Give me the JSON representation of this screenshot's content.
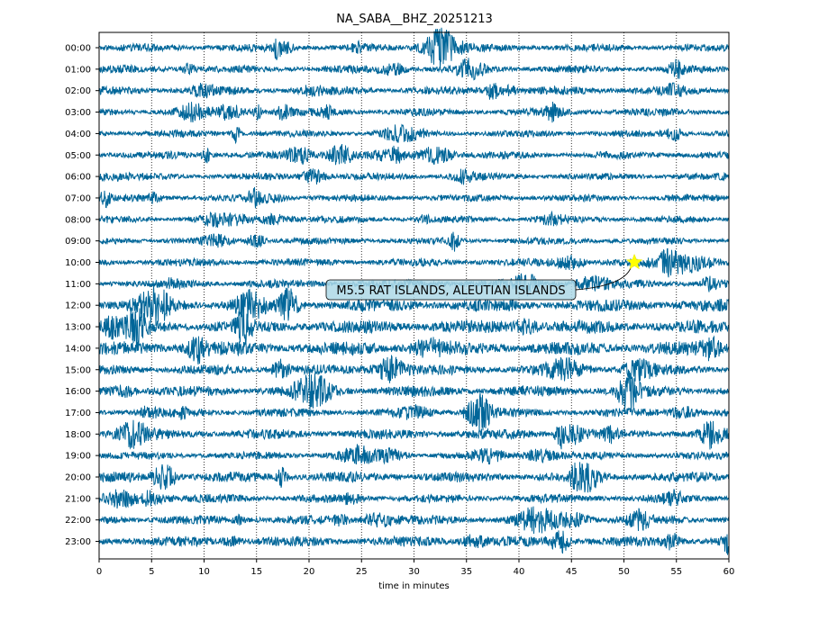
{
  "chart_data": {
    "type": "line",
    "title": "NA_SABA__BHZ_20251213",
    "xlabel": "time in minutes",
    "ylabel": "",
    "xlim": [
      0,
      60
    ],
    "x_ticks": [
      0,
      5,
      10,
      15,
      20,
      25,
      30,
      35,
      40,
      45,
      50,
      55,
      60
    ],
    "grid": "vertical dotted at each x tick",
    "trace_color": "#006699",
    "rows": [
      "00:00",
      "01:00",
      "02:00",
      "03:00",
      "04:00",
      "05:00",
      "06:00",
      "07:00",
      "08:00",
      "09:00",
      "10:00",
      "11:00",
      "12:00",
      "13:00",
      "14:00",
      "15:00",
      "16:00",
      "17:00",
      "18:00",
      "19:00",
      "20:00",
      "21:00",
      "22:00",
      "23:00"
    ],
    "row_amplitude": [
      1.0,
      1.0,
      1.1,
      1.0,
      0.9,
      1.0,
      0.9,
      0.9,
      0.9,
      0.9,
      1.0,
      1.1,
      1.6,
      1.7,
      1.8,
      1.3,
      1.4,
      1.1,
      1.3,
      1.0,
      1.3,
      1.1,
      1.2,
      1.3
    ],
    "event": {
      "label": "M5.5 RAT ISLANDS, ALEUTIAN ISLANDS",
      "row": "10:00",
      "minute": 51.0,
      "marker": "star",
      "marker_color": "#ffff00"
    }
  }
}
